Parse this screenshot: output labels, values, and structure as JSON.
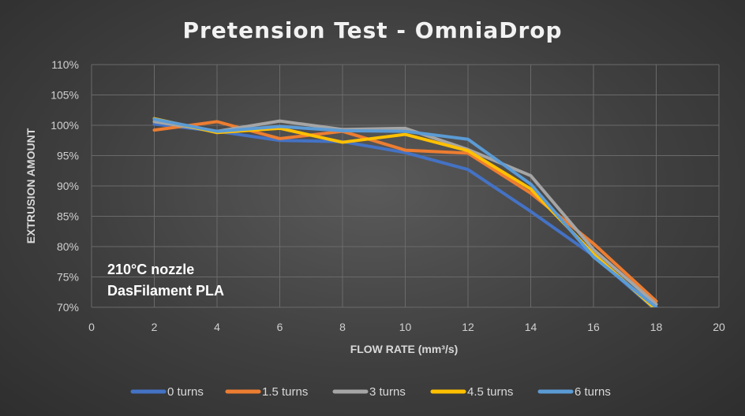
{
  "chart_data": {
    "type": "line",
    "title": "Pretension Test - OmniaDrop",
    "xlabel": "FLOW RATE (mm³/s)",
    "ylabel": "EXTRUSION AMOUNT",
    "xlim": [
      0,
      20
    ],
    "ylim": [
      70,
      110
    ],
    "x_ticks": [
      "0",
      "2",
      "4",
      "6",
      "8",
      "10",
      "12",
      "14",
      "16",
      "18",
      "20"
    ],
    "y_ticks": [
      "70%",
      "75%",
      "80%",
      "85%",
      "90%",
      "95%",
      "100%",
      "105%",
      "110%"
    ],
    "grid": true,
    "legend_position": "bottom",
    "annotations": [
      "210°C nozzle",
      "DasFilament PLA"
    ],
    "series": [
      {
        "name": "0 turns",
        "color": "#4472C4",
        "x": [
          2,
          4,
          6,
          8,
          10,
          12,
          14,
          16,
          18
        ],
        "y": [
          100.2,
          99.0,
          97.5,
          97.3,
          95.5,
          92.7,
          85.8,
          78.5,
          69.5
        ]
      },
      {
        "name": "1.5 turns",
        "color": "#ED7D31",
        "x": [
          2,
          4,
          6,
          8,
          10,
          12,
          14,
          16,
          18
        ],
        "y": [
          99.2,
          100.6,
          97.8,
          99.0,
          95.9,
          95.4,
          88.8,
          80.5,
          71.0
        ]
      },
      {
        "name": "3 turns",
        "color": "#A5A5A5",
        "x": [
          2,
          4,
          6,
          8,
          10,
          12,
          14,
          16,
          18
        ],
        "y": [
          100.6,
          99.0,
          100.7,
          99.3,
          99.5,
          96.0,
          91.7,
          79.5,
          70.5
        ]
      },
      {
        "name": "4.5 turns",
        "color": "#FFC000",
        "x": [
          2,
          4,
          6,
          8,
          10,
          12,
          14,
          16,
          18
        ],
        "y": [
          101.1,
          98.8,
          99.5,
          97.2,
          98.5,
          95.8,
          89.5,
          78.8,
          69.6
        ]
      },
      {
        "name": "6 turns",
        "color": "#5B9BD5",
        "x": [
          2,
          4,
          6,
          8,
          10,
          12,
          14,
          16,
          18
        ],
        "y": [
          101.0,
          99.0,
          99.8,
          99.1,
          99.0,
          97.7,
          90.3,
          78.3,
          70.0
        ]
      }
    ]
  }
}
